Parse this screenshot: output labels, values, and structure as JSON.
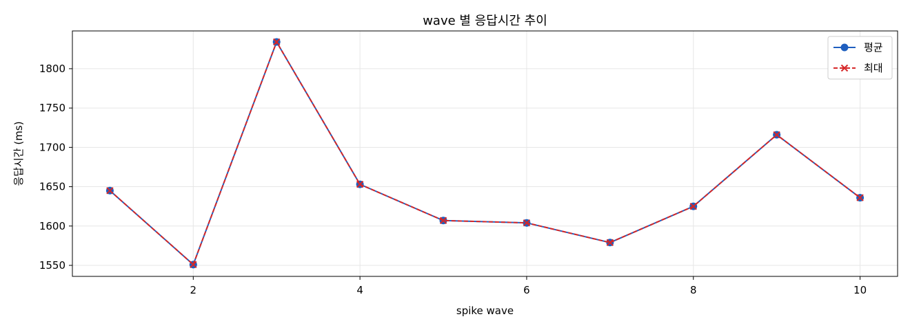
{
  "chart_data": {
    "type": "line",
    "title": "wave 별 응답시간 추이",
    "xlabel": "spike wave",
    "ylabel": "응답시간 (ms)",
    "x": [
      1,
      2,
      3,
      4,
      5,
      6,
      7,
      8,
      9,
      10
    ],
    "series": [
      {
        "name": "평균",
        "values": [
          1645,
          1551,
          1834,
          1653,
          1607,
          1604,
          1579,
          1625,
          1716,
          1636
        ],
        "color": "#1f5fbf",
        "marker": "circle",
        "linestyle": "solid"
      },
      {
        "name": "최대",
        "values": [
          1645,
          1551,
          1834,
          1653,
          1607,
          1604,
          1579,
          1625,
          1716,
          1636
        ],
        "color": "#d62728",
        "marker": "x",
        "linestyle": "dashed"
      }
    ],
    "xticks": [
      2,
      4,
      6,
      8,
      10
    ],
    "yticks": [
      1550,
      1600,
      1650,
      1700,
      1750,
      1800
    ],
    "xlim": [
      0.55,
      10.45
    ],
    "ylim": [
      1536,
      1848
    ],
    "grid": true,
    "legend_position": "top-right"
  }
}
